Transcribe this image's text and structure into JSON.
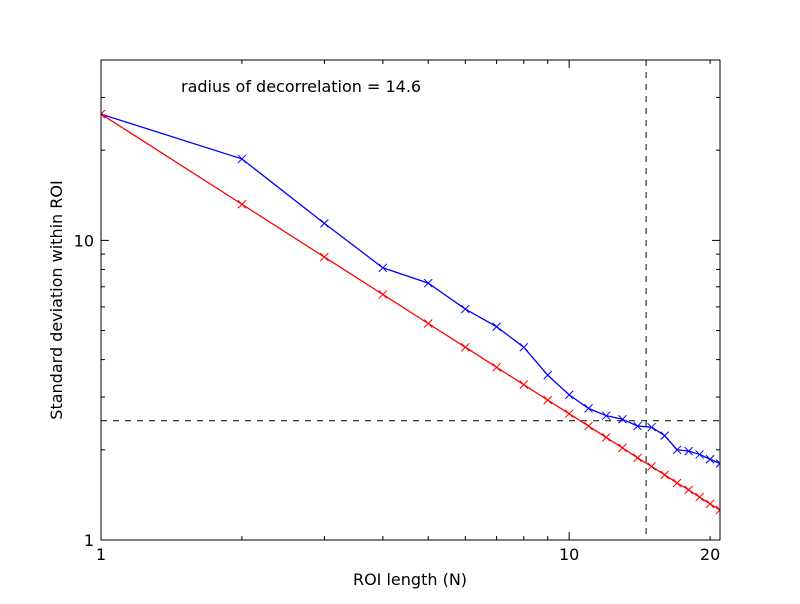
{
  "chart_data": {
    "type": "line",
    "title": "",
    "xlabel": "ROI length (N)",
    "ylabel": "Standard deviation within ROI",
    "xscale": "log",
    "yscale": "log",
    "xlim": [
      1,
      21
    ],
    "ylim": [
      1,
      40
    ],
    "x_ticks": [
      {
        "value": 1,
        "label": "1"
      },
      {
        "value": 10,
        "label": "10"
      },
      {
        "value": 20,
        "label": "20"
      }
    ],
    "y_ticks": [
      {
        "value": 1,
        "label": "1"
      },
      {
        "value": 10,
        "label": "10"
      }
    ],
    "grid": false,
    "legend": "none",
    "annotation": "radius of decorrelation = 14.6",
    "reference_lines": [
      {
        "orientation": "vertical",
        "value": 14.6,
        "style": "dashed",
        "color": "#000000"
      },
      {
        "orientation": "horizontal",
        "value": 2.5,
        "style": "dashed",
        "color": "#000000"
      }
    ],
    "series": [
      {
        "color": "#0000ff",
        "marker": "x",
        "x": [
          1,
          2,
          3,
          4,
          5,
          6,
          7,
          8,
          9,
          10,
          11,
          12,
          13,
          14,
          15,
          16,
          17,
          18,
          19,
          20,
          21
        ],
        "values": [
          26.4,
          18.7,
          11.4,
          8.1,
          7.2,
          5.9,
          5.15,
          4.4,
          3.55,
          3.05,
          2.75,
          2.6,
          2.53,
          2.4,
          2.38,
          2.23,
          2.0,
          1.98,
          1.93,
          1.86,
          1.8
        ]
      },
      {
        "color": "#ff0000",
        "marker": "x",
        "x": [
          1,
          2,
          3,
          4,
          5,
          6,
          7,
          8,
          9,
          10,
          11,
          12,
          13,
          14,
          15,
          16,
          17,
          18,
          19,
          20,
          21
        ],
        "values": [
          26.4,
          13.2,
          8.8,
          6.6,
          5.28,
          4.4,
          3.77,
          3.3,
          2.93,
          2.64,
          2.4,
          2.2,
          2.03,
          1.88,
          1.76,
          1.65,
          1.55,
          1.47,
          1.39,
          1.32,
          1.26
        ]
      }
    ]
  }
}
